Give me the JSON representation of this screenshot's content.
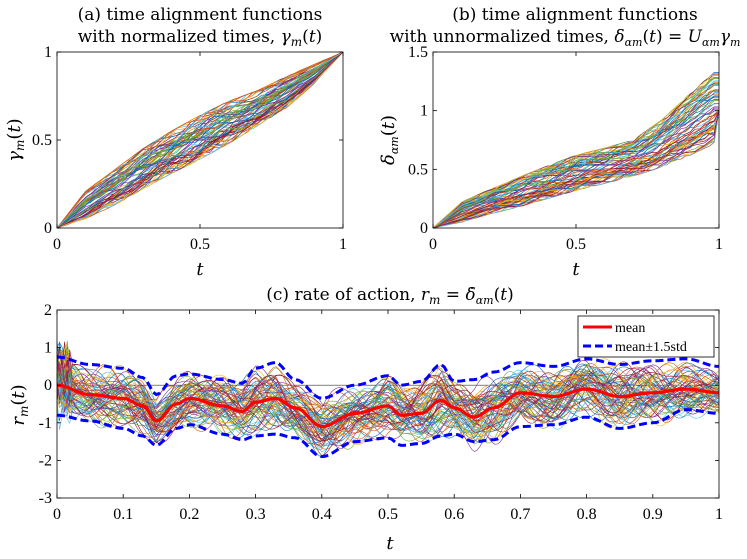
{
  "chart_data": [
    {
      "type": "line",
      "panel": "a",
      "title_line1": "(a) time alignment functions",
      "title_line2": "with normalized times, γm(t)",
      "xlabel": "t",
      "ylabel": "γm(t)",
      "xlim": [
        0,
        1
      ],
      "ylim": [
        0,
        1
      ],
      "xticks": [
        0,
        0.5,
        1
      ],
      "xtick_labels": [
        "0",
        "0.5",
        "1"
      ],
      "yticks": [
        0,
        0.5,
        1
      ],
      "ytick_labels": [
        "0",
        "0.5",
        "1"
      ],
      "envelope": {
        "x": [
          0,
          0.1,
          0.2,
          0.3,
          0.4,
          0.5,
          0.6,
          0.7,
          0.8,
          0.9,
          1.0
        ],
        "lower": [
          0,
          0.05,
          0.13,
          0.22,
          0.31,
          0.39,
          0.48,
          0.58,
          0.68,
          0.82,
          1.0
        ],
        "upper": [
          0,
          0.21,
          0.33,
          0.45,
          0.55,
          0.64,
          0.72,
          0.78,
          0.86,
          0.93,
          1.0
        ]
      },
      "series_count": 70
    },
    {
      "type": "line",
      "panel": "b",
      "title_line1": "(b) time alignment functions",
      "title_line2": "with unnormalized times, δαm(t) = Uαm γm",
      "xlabel": "t",
      "ylabel": "δαm(t)",
      "xlim": [
        0,
        1
      ],
      "ylim": [
        0,
        1.5
      ],
      "xticks": [
        0,
        0.5,
        1
      ],
      "xtick_labels": [
        "0",
        "0.5",
        "1"
      ],
      "yticks": [
        0,
        0.5,
        1,
        1.5
      ],
      "ytick_labels": [
        "0",
        "0.5",
        "1",
        "1.5"
      ],
      "envelope": {
        "x": [
          0,
          0.1,
          0.2,
          0.3,
          0.4,
          0.5,
          0.6,
          0.7,
          0.8,
          0.9,
          1.0
        ],
        "lower": [
          0,
          0.05,
          0.12,
          0.18,
          0.25,
          0.32,
          0.38,
          0.44,
          0.52,
          0.62,
          0.74
        ],
        "upper": [
          0,
          0.22,
          0.33,
          0.43,
          0.53,
          0.62,
          0.68,
          0.75,
          0.92,
          1.15,
          1.36
        ]
      },
      "series_count": 70
    },
    {
      "type": "line",
      "panel": "c",
      "title": "(c) rate of action, rm = δ̇αm(t)",
      "xlabel": "t",
      "ylabel": "rm(t)",
      "xlim": [
        0,
        1
      ],
      "ylim": [
        -3,
        2
      ],
      "xticks": [
        0,
        0.1,
        0.2,
        0.3,
        0.4,
        0.5,
        0.6,
        0.7,
        0.8,
        0.9,
        1
      ],
      "xtick_labels": [
        "0",
        "0.1",
        "0.2",
        "0.3",
        "0.4",
        "0.5",
        "0.6",
        "0.7",
        "0.8",
        "0.9",
        "1"
      ],
      "yticks": [
        -3,
        -2,
        -1,
        0,
        1,
        2
      ],
      "ytick_labels": [
        "-3",
        "-2",
        "-1",
        "0",
        "1",
        "2"
      ],
      "legend_position": "top-right",
      "legend": [
        {
          "name": "mean",
          "color": "#ff0000",
          "style": "solid"
        },
        {
          "name": "mean±1.5std",
          "color": "#0000ff",
          "style": "dashed"
        }
      ],
      "mean": {
        "x": [
          0,
          0.05,
          0.1,
          0.13,
          0.15,
          0.18,
          0.2,
          0.25,
          0.28,
          0.3,
          0.33,
          0.36,
          0.4,
          0.45,
          0.5,
          0.52,
          0.55,
          0.58,
          0.6,
          0.63,
          0.66,
          0.7,
          0.75,
          0.8,
          0.85,
          0.9,
          0.95,
          1.0
        ],
        "y": [
          0,
          -0.25,
          -0.35,
          -0.55,
          -0.95,
          -0.5,
          -0.35,
          -0.55,
          -0.7,
          -0.45,
          -0.35,
          -0.6,
          -1.1,
          -0.75,
          -0.55,
          -0.8,
          -0.75,
          -0.4,
          -0.6,
          -0.85,
          -0.6,
          -0.2,
          -0.3,
          -0.1,
          -0.3,
          -0.2,
          -0.1,
          -0.2
        ]
      },
      "std_band_upper": {
        "x": [
          0,
          0.05,
          0.1,
          0.13,
          0.15,
          0.18,
          0.2,
          0.25,
          0.28,
          0.3,
          0.33,
          0.36,
          0.4,
          0.45,
          0.5,
          0.52,
          0.55,
          0.58,
          0.6,
          0.63,
          0.66,
          0.7,
          0.75,
          0.8,
          0.85,
          0.9,
          0.95,
          1.0
        ],
        "y": [
          0.75,
          0.55,
          0.45,
          0.2,
          -0.25,
          0.25,
          0.3,
          0.15,
          0.05,
          0.45,
          0.6,
          0.15,
          -0.35,
          0.0,
          0.25,
          0.0,
          0.1,
          0.55,
          0.1,
          0.15,
          0.35,
          0.6,
          0.5,
          0.7,
          0.55,
          0.65,
          0.7,
          0.5
        ]
      },
      "std_band_lower": {
        "x": [
          0,
          0.05,
          0.1,
          0.13,
          0.15,
          0.18,
          0.2,
          0.25,
          0.28,
          0.3,
          0.33,
          0.36,
          0.4,
          0.45,
          0.5,
          0.52,
          0.55,
          0.58,
          0.6,
          0.63,
          0.66,
          0.7,
          0.75,
          0.8,
          0.85,
          0.9,
          0.95,
          1.0
        ],
        "y": [
          -0.8,
          -0.95,
          -1.15,
          -1.35,
          -1.6,
          -1.15,
          -1.05,
          -1.3,
          -1.45,
          -1.35,
          -1.3,
          -1.4,
          -1.9,
          -1.5,
          -1.4,
          -1.6,
          -1.55,
          -1.35,
          -1.3,
          -1.5,
          -1.45,
          -1.1,
          -1.05,
          -0.85,
          -1.15,
          -1.0,
          -0.65,
          -0.75
        ]
      },
      "series_count": 70
    }
  ],
  "colors": [
    "#0072bd",
    "#d95319",
    "#edb120",
    "#7e2f8e",
    "#77ac30",
    "#4dbeee",
    "#a2142f"
  ]
}
